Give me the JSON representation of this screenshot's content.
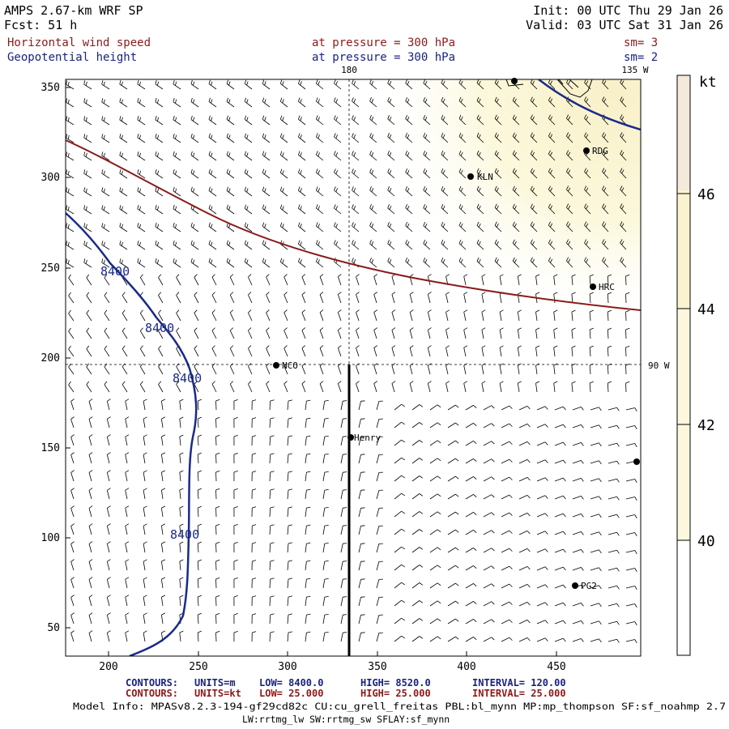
{
  "header": {
    "model": "AMPS 2.67-km WRF SP",
    "forecast": "Fcst:   51 h",
    "init": "Init: 00 UTC Thu 29 Jan 26",
    "valid": "Valid: 03 UTC Sat 31 Jan 26",
    "field1_name": "Horizontal wind speed",
    "field1_level": "at pressure =  300 hPa",
    "field1_sm": "sm= 3",
    "field2_name": "Geopotential height",
    "field2_level": "at pressure =  300 hPa",
    "field2_sm": "sm= 2"
  },
  "colors": {
    "field1": "#8b1a1a",
    "field2": "#1a237e",
    "height_contour": "#1a2a8a",
    "speed_contour": "#8b1a1a",
    "shade_light": "#fdf9dd",
    "shade_mid": "#fbf3c6",
    "shade_high": "#f4ead8"
  },
  "map": {
    "meridian_180": "180",
    "meridian_135w": "135 W",
    "meridian_90w": "90 W",
    "x_ticks": [
      "200",
      "250",
      "300",
      "350",
      "400",
      "450"
    ],
    "y_ticks": [
      "350",
      "300",
      "250",
      "200",
      "150",
      "100",
      "50"
    ],
    "height_contour_labels": [
      "8400",
      "8400",
      "8400",
      "8400"
    ],
    "stations": [
      "NCO",
      "Henry",
      "KLN",
      "HRC",
      "RDG",
      "PG2"
    ],
    "unlabeled_station_markers": 2
  },
  "colorbar": {
    "unit": "kt",
    "labels": [
      "46",
      "44",
      "42",
      "40"
    ]
  },
  "footer": {
    "c1_label": "CONTOURS:",
    "c1_units": "UNITS=m",
    "c1_low": "LOW=  8400.0",
    "c1_high": "HIGH=  8520.0",
    "c1_interval": "INTERVAL=    120.00",
    "c2_label": "CONTOURS:",
    "c2_units": "UNITS=kt",
    "c2_low": "LOW=  25.000",
    "c2_high": "HIGH=  25.000",
    "c2_interval": "INTERVAL=    25.000",
    "model_info_1": "Model Info: MPASv8.2.3-194-gf29cd82c CU:cu_grell_freitas PBL:bl_mynn MP:mp_thompson SF:sf_noahmp 2.7",
    "model_info_2": "LW:rrtmg_lw SW:rrtmg_sw SFLAY:sf_mynn"
  }
}
